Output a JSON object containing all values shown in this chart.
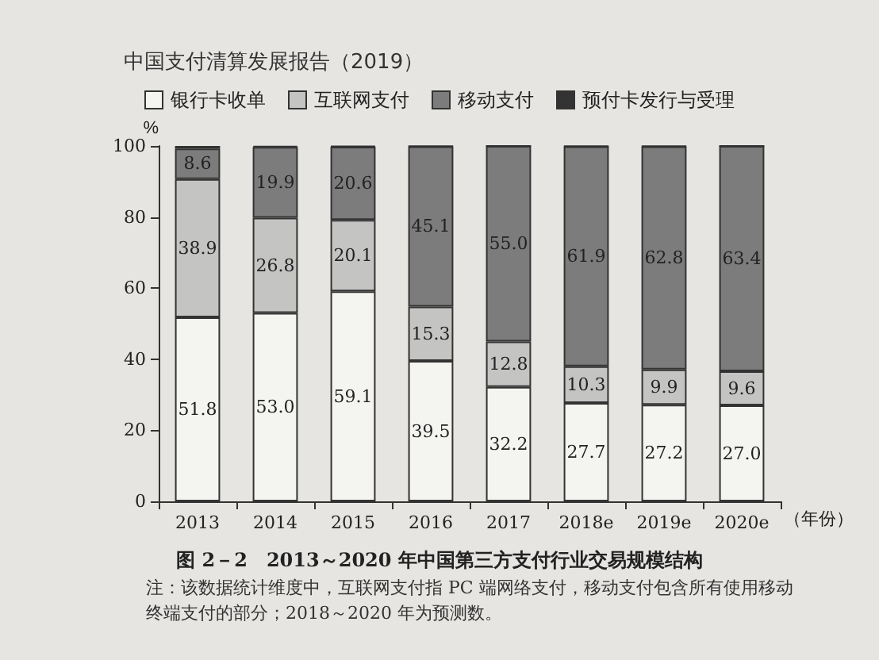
{
  "chart_data": {
    "type": "bar",
    "stacked": true,
    "title": "图 2－2　2013～2020 年中国第三方支付行业交易规模结构",
    "xlabel": "（年份）",
    "ylabel": "%",
    "categories": [
      "2013",
      "2014",
      "2015",
      "2016",
      "2017",
      "2018e",
      "2019e",
      "2020e"
    ],
    "series": [
      {
        "name": "银行卡收单",
        "color": "#f4f4f1",
        "values": [
          51.8,
          53.0,
          59.1,
          39.5,
          32.2,
          27.7,
          27.2,
          27.0
        ],
        "value_labels": [
          "51.8",
          "53.0",
          "59.1",
          "39.5",
          "32.2",
          "27.7",
          "27.2",
          "27.0"
        ]
      },
      {
        "name": "互联网支付",
        "color": "#c4c4c2",
        "values": [
          38.9,
          26.8,
          20.1,
          15.3,
          12.8,
          10.3,
          9.9,
          9.6
        ],
        "value_labels": [
          "38.9",
          "26.8",
          "20.1",
          "15.3",
          "12.8",
          "10.3",
          "9.9",
          "9.6"
        ]
      },
      {
        "name": "移动支付",
        "color": "#7c7c7c",
        "values": [
          8.6,
          19.9,
          20.6,
          45.1,
          55.0,
          61.9,
          62.8,
          63.4
        ],
        "value_labels": [
          "8.6",
          "19.9",
          "20.6",
          "45.1",
          "55.0",
          "61.9",
          "62.8",
          "63.4"
        ]
      },
      {
        "name": "预付卡发行与受理",
        "color": "#333333",
        "values": [
          0.7,
          0.3,
          0.2,
          0.1,
          0,
          0.1,
          0.1,
          0
        ],
        "value_labels": [
          null,
          null,
          null,
          null,
          null,
          null,
          null,
          null
        ]
      }
    ],
    "ylim": [
      0,
      100
    ],
    "yticks": [
      0,
      20,
      40,
      60,
      80,
      100
    ],
    "grid": false,
    "legend": "top",
    "annotations": [
      "中国支付清算发展报告（2019）",
      "注：该数据统计维度中，互联网支付指 PC 端网络支付，移动支付包含所有使用移动终端支付的部分；2018～2020 年为预测数。"
    ]
  }
}
